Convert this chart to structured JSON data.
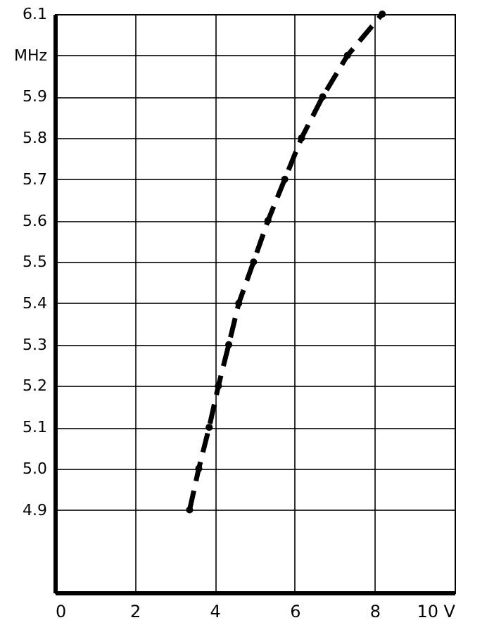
{
  "chart_data": {
    "type": "line",
    "x": [
      3.37,
      3.6,
      3.86,
      4.09,
      4.35,
      4.6,
      4.97,
      5.33,
      5.75,
      6.17,
      6.7,
      7.32,
      8.19
    ],
    "series": [
      {
        "color": "#000000",
        "values": [
          4.9,
          5.0,
          5.1,
          5.2,
          5.3,
          5.4,
          5.5,
          5.6,
          5.7,
          5.8,
          5.9,
          6.0,
          6.1
        ]
      }
    ],
    "xlim": [
      0,
      10
    ],
    "xticks": [
      0,
      2,
      4,
      6,
      8,
      {
        "value": 10,
        "label": "10 V"
      }
    ],
    "ylim": [
      4.7,
      6.1
    ],
    "yticks": [
      4.9,
      "5.0",
      5.1,
      5.2,
      5.3,
      5.4,
      5.5,
      5.6,
      5.7,
      5.8,
      5.9,
      {
        "value": 6.0,
        "label": "MHz"
      },
      6.1
    ],
    "grid": true,
    "marker": "circle",
    "line_style": "dashed"
  }
}
